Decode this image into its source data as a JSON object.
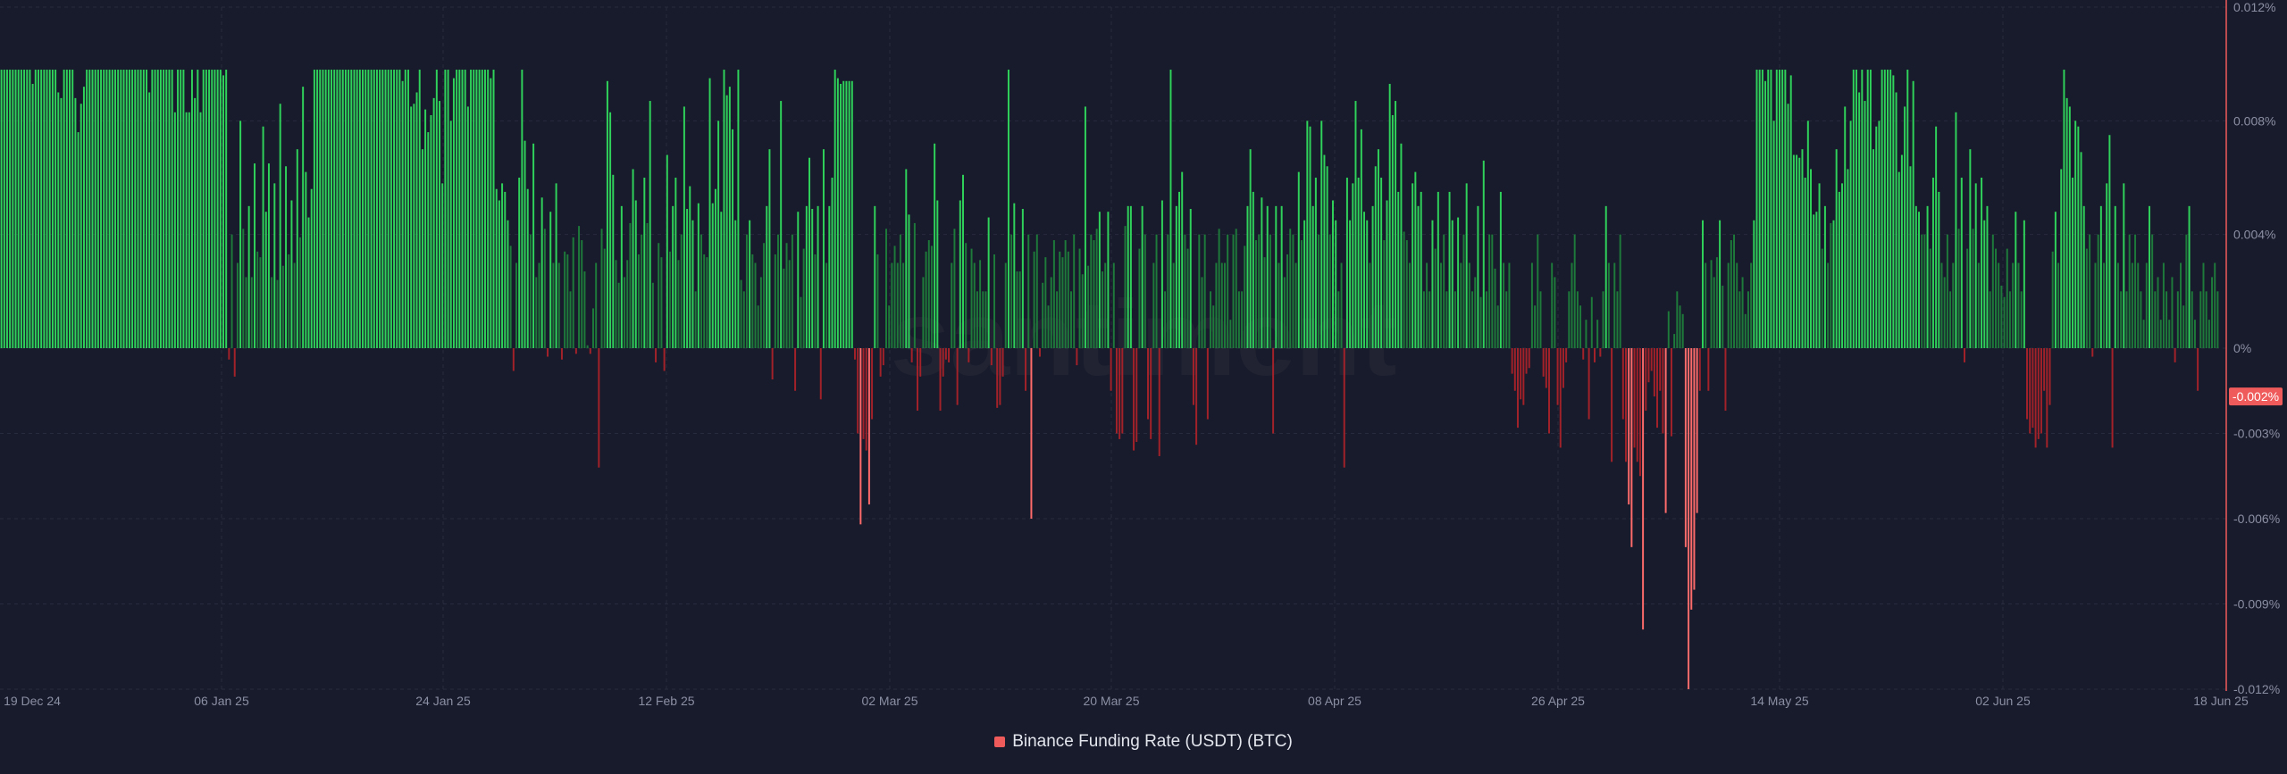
{
  "watermark": "santiment",
  "colors": {
    "background": "#181b2b",
    "positive_strong": "#2fd25a",
    "positive_weak": "#1d7a3a",
    "negative_strong": "#ff6b6b",
    "negative_weak": "#a3222a",
    "grid": "#272b3e",
    "axis_line": "#ef5b5b",
    "current_badge": "#ef5b5b",
    "legend_swatch": "#ef5b5b"
  },
  "chart_data": {
    "type": "bar",
    "x_tick_labels": [
      "19 Dec 24",
      "06 Jan 25",
      "24 Jan 25",
      "12 Feb 25",
      "02 Mar 25",
      "20 Mar 25",
      "08 Apr 25",
      "26 Apr 25",
      "14 May 25",
      "02 Jun 25",
      "18 Jun 25"
    ],
    "y_tick_labels": [
      "0.012%",
      "0.008%",
      "0.004%",
      "0%",
      "-0.003%",
      "-0.006%",
      "-0.009%",
      "-0.012%"
    ],
    "y_ticks": [
      0.012,
      0.008,
      0.004,
      0,
      -0.003,
      -0.006,
      -0.009,
      -0.012
    ],
    "ylim": [
      -0.012,
      0.012
    ],
    "current_value_label": "-0.002%",
    "current_value": -0.0017,
    "grid": true,
    "y_axis_position": "right",
    "legend_position": "bottom-center",
    "series": [
      {
        "name": "Binance Funding Rate (USDT) (BTC)",
        "values": [
          0.0098,
          0.0098,
          0.0098,
          0.0098,
          0.0098,
          0.0098,
          0.0098,
          0.0098,
          0.0098,
          0.0098,
          0.0098,
          0.0093,
          0.0098,
          0.0098,
          0.0098,
          0.0098,
          0.0098,
          0.0098,
          0.0098,
          0.0098,
          0.009,
          0.0088,
          0.0098,
          0.0098,
          0.0098,
          0.0098,
          0.0088,
          0.0076,
          0.0086,
          0.0092,
          0.0098,
          0.0098,
          0.0098,
          0.0098,
          0.0098,
          0.0098,
          0.0098,
          0.0098,
          0.0098,
          0.0098,
          0.0098,
          0.0098,
          0.0098,
          0.0098,
          0.0098,
          0.0098,
          0.0098,
          0.0098,
          0.0098,
          0.0098,
          0.0098,
          0.0098,
          0.009,
          0.0098,
          0.0098,
          0.0098,
          0.0098,
          0.0098,
          0.0098,
          0.0098,
          0.0098,
          0.0083,
          0.0098,
          0.0098,
          0.0098,
          0.0083,
          0.0083,
          0.0098,
          0.0088,
          0.0098,
          0.0083,
          0.0098,
          0.0098,
          0.0098,
          0.0098,
          0.0098,
          0.0098,
          0.0098,
          0.0096,
          0.0098,
          -0.0004,
          0.004,
          -0.001,
          0.003,
          0.008,
          0.0042,
          0.0025,
          0.005,
          0.0025,
          0.0065,
          0.0034,
          0.0032,
          0.0078,
          0.0048,
          0.0065,
          0.0025,
          0.0058,
          0.0024,
          0.0086,
          0.0029,
          0.0064,
          0.0033,
          0.0052,
          0.003,
          0.007,
          0.0039,
          0.0092,
          0.0062,
          0.0046,
          0.0056,
          0.0098,
          0.0098,
          0.0098,
          0.0098,
          0.0098,
          0.0098,
          0.0098,
          0.0098,
          0.0098,
          0.0098,
          0.0098,
          0.0098,
          0.0098,
          0.0098,
          0.0098,
          0.0098,
          0.0098,
          0.0098,
          0.0098,
          0.0098,
          0.0098,
          0.0098,
          0.0098,
          0.0098,
          0.0098,
          0.0098,
          0.0098,
          0.0098,
          0.0098,
          0.0098,
          0.0098,
          0.0094,
          0.0098,
          0.0098,
          0.0085,
          0.0086,
          0.009,
          0.0098,
          0.007,
          0.0084,
          0.0076,
          0.0082,
          0.0088,
          0.0098,
          0.0087,
          0.0058,
          0.0098,
          0.0098,
          0.008,
          0.0095,
          0.0098,
          0.0098,
          0.0098,
          0.0098,
          0.0085,
          0.0098,
          0.0098,
          0.0098,
          0.0098,
          0.0098,
          0.0098,
          0.0098,
          0.0095,
          0.0098,
          0.0056,
          0.0052,
          0.0058,
          0.0055,
          0.0045,
          0.0036,
          -0.0008,
          0.003,
          0.006,
          0.0098,
          0.0073,
          0.0056,
          0.004,
          0.0072,
          0.0025,
          0.003,
          0.0053,
          0.0042,
          -0.0003,
          0.0048,
          0.003,
          0.0058,
          0.003,
          -0.0004,
          0.0034,
          0.0033,
          0.002,
          0.0039,
          -0.0002,
          0.0043,
          0.0038,
          0.0027,
          0.0001,
          -0.0002,
          0.0014,
          0.003,
          -0.0042,
          0.0042,
          0.0035,
          0.0094,
          0.0083,
          0.0061,
          0.0031,
          0.0023,
          0.005,
          0.0025,
          0.0031,
          0.0044,
          0.0063,
          0.0052,
          0.0033,
          0.004,
          0.006,
          0.0044,
          0.0087,
          0.0023,
          -0.0005,
          0.0037,
          0.0032,
          -0.0008,
          0.0068,
          0.0034,
          0.005,
          0.006,
          0.0031,
          0.004,
          0.0085,
          0.0049,
          0.0057,
          0.0045,
          0.002,
          0.0051,
          0.004,
          0.0033,
          0.0032,
          0.0095,
          0.0051,
          0.0056,
          0.008,
          0.0048,
          0.0098,
          0.0089,
          0.0092,
          0.0077,
          0.0045,
          0.0098,
          0.0024,
          0.002,
          0.004,
          0.0045,
          0.0033,
          0.003,
          0.0015,
          0.0025,
          0.0037,
          0.005,
          0.007,
          -0.0011,
          0.0033,
          0.004,
          0.0087,
          0.0028,
          0.0037,
          0.0031,
          0.004,
          -0.0015,
          0.0048,
          0.0018,
          0.0035,
          0.005,
          0.0067,
          0.0049,
          0.0033,
          0.005,
          -0.0018,
          0.007,
          0.003,
          0.005,
          0.006,
          0.0098,
          0.0095,
          0.0093,
          0.0094,
          0.0094,
          0.0094,
          0.0094,
          -0.0004,
          -0.003,
          -0.0062,
          -0.0032,
          -0.0036,
          -0.0055,
          -0.0025,
          0.005,
          0.0033,
          -0.001,
          -0.0006,
          0.0042,
          0.0015,
          0.003,
          0.0036,
          0.003,
          0.004,
          0.003,
          0.0063,
          0.0047,
          -0.0005,
          0.0044,
          -0.0022,
          -0.001,
          0.0025,
          0.0034,
          0.0038,
          0.0036,
          0.0072,
          0.0052,
          -0.0022,
          -0.001,
          -0.0004,
          -0.0005,
          0.003,
          0.0042,
          -0.002,
          0.0052,
          0.0061,
          0.0037,
          -0.0005,
          0.0035,
          0.003,
          0.002,
          0.0031,
          0.002,
          0.002,
          0.0046,
          -0.0006,
          0.0033,
          -0.0021,
          -0.002,
          -0.001,
          0.003,
          0.0098,
          0.004,
          0.0051,
          0.0027,
          0.0027,
          0.0049,
          -0.0015,
          0.004,
          -0.006,
          0.0034,
          0.004,
          -0.0003,
          0.0023,
          0.0032,
          0.0015,
          0.0025,
          0.0038,
          0.002,
          0.0034,
          0.0032,
          0.0038,
          0.0034,
          0.002,
          0.004,
          -0.0006,
          0.0035,
          0.0026,
          0.0085,
          0.0029,
          0.004,
          0.0038,
          0.0042,
          0.0048,
          0.0027,
          0.003,
          0.0048,
          -0.0015,
          0.003,
          -0.003,
          -0.0032,
          -0.003,
          0.0043,
          0.005,
          0.005,
          -0.0036,
          -0.0033,
          0.0035,
          0.005,
          0.004,
          -0.0025,
          -0.0032,
          0.003,
          0.004,
          -0.0038,
          0.0052,
          0.002,
          0.004,
          0.0098,
          0.003,
          0.005,
          0.0055,
          0.0062,
          0.004,
          0.0035,
          0.0049,
          -0.002,
          -0.0034,
          0.004,
          0.0025,
          0.004,
          -0.0025,
          0.002,
          0.0015,
          0.003,
          0.0042,
          0.003,
          0.003,
          0.004,
          0.001,
          0.004,
          0.0042,
          0.002,
          0.002,
          0.0036,
          0.005,
          0.007,
          0.0055,
          0.0038,
          0.004,
          0.0053,
          0.0032,
          0.005,
          0.004,
          -0.003,
          0.005,
          0.003,
          0.005,
          0.0025,
          0.0033,
          0.0042,
          0.004,
          0.003,
          0.0062,
          0.0038,
          0.0045,
          0.008,
          0.0078,
          0.005,
          0.006,
          0.004,
          0.008,
          0.0068,
          0.0064,
          0.004,
          0.0052,
          0.0045,
          0.002,
          0.003,
          -0.0042,
          0.006,
          0.0045,
          0.0058,
          0.0087,
          0.006,
          0.0077,
          0.0048,
          0.0045,
          0.003,
          0.005,
          0.0064,
          0.007,
          0.006,
          0.0038,
          0.0052,
          0.0093,
          0.0082,
          0.0087,
          0.0055,
          0.0072,
          0.0041,
          0.0038,
          0.003,
          0.0058,
          0.0062,
          0.005,
          0.0055,
          0.002,
          0.003,
          0.002,
          0.0045,
          0.0035,
          0.0055,
          0.003,
          0.004,
          0.002,
          0.0055,
          0.0045,
          0.002,
          0.0046,
          0.003,
          0.004,
          0.0058,
          0.003,
          0.002,
          0.0025,
          0.005,
          0.0018,
          0.0066,
          0.002,
          0.004,
          0.004,
          0.0028,
          0.0015,
          0.0055,
          0.003,
          0.002,
          0.003,
          -0.0009,
          -0.0015,
          -0.0028,
          -0.0018,
          -0.002,
          -0.0009,
          -0.0007,
          0.003,
          0.0015,
          0.004,
          0.002,
          -0.001,
          -0.0014,
          -0.003,
          0.003,
          0.0025,
          -0.002,
          -0.0035,
          -0.0014,
          -0.0005,
          0.002,
          0.003,
          0.004,
          0.002,
          0.0015,
          -0.0004,
          0.001,
          -0.0025,
          0.0018,
          -0.0005,
          0.001,
          -0.0003,
          0.002,
          0.005,
          0.003,
          -0.004,
          0.003,
          0.002,
          0.004,
          -0.0025,
          -0.004,
          -0.0055,
          -0.007,
          -0.0035,
          -0.004,
          -0.0045,
          -0.0099,
          -0.0022,
          -0.0012,
          -0.0008,
          -0.0017,
          -0.0028,
          -0.0015,
          -0.003,
          -0.0058,
          0.0013,
          -0.0031,
          0.0005,
          0.002,
          0.0015,
          0.0012,
          -0.007,
          -0.012,
          -0.0092,
          -0.0085,
          -0.0058,
          -0.0015,
          0.0045,
          0.003,
          -0.0015,
          0.0031,
          0.0025,
          0.0032,
          0.0045,
          0.0022,
          -0.0022,
          0.003,
          0.0038,
          0.004,
          0.003,
          0.002,
          0.0025,
          0.0012,
          0.002,
          0.003,
          0.0045,
          0.0098,
          0.0098,
          0.0098,
          0.0094,
          0.0098,
          0.0098,
          0.008,
          0.0098,
          0.0098,
          0.0098,
          0.0098,
          0.0086,
          0.0096,
          0.0068,
          0.0068,
          0.0067,
          0.007,
          0.006,
          0.008,
          0.0063,
          0.0047,
          0.0048,
          0.0058,
          0.0035,
          0.005,
          0.003,
          0.0044,
          0.0045,
          0.007,
          0.0055,
          0.0058,
          0.0085,
          0.0063,
          0.008,
          0.0098,
          0.0098,
          0.009,
          0.0098,
          0.0087,
          0.0098,
          0.0098,
          0.007,
          0.0078,
          0.008,
          0.0098,
          0.0098,
          0.0098,
          0.0098,
          0.0096,
          0.009,
          0.0062,
          0.0068,
          0.0085,
          0.0098,
          0.0064,
          0.0094,
          0.005,
          0.0048,
          0.004,
          0.004,
          0.005,
          0.0035,
          0.006,
          0.0078,
          0.0055,
          0.003,
          0.0025,
          0.004,
          0.002,
          0.003,
          0.0083,
          0.0042,
          0.006,
          -0.0005,
          0.0035,
          0.007,
          0.0042,
          0.0058,
          0.003,
          0.006,
          0.0045,
          0.005,
          0.002,
          0.004,
          0.0035,
          0.003,
          0.0022,
          0.0018,
          0.0035,
          0.002,
          0.003,
          0.0048,
          0.003,
          0.002,
          0.0045,
          -0.0025,
          -0.003,
          -0.0028,
          -0.0035,
          -0.0032,
          -0.003,
          -0.0015,
          -0.0035,
          -0.002,
          0.0034,
          0.0048,
          0.003,
          0.0063,
          0.0098,
          0.0088,
          0.0085,
          0.006,
          0.008,
          0.0078,
          0.0069,
          0.005,
          0.0035,
          0.004,
          -0.0003,
          0.003,
          0.004,
          0.005,
          0.003,
          0.0058,
          0.0075,
          -0.0035,
          0.005,
          0.003,
          0.002,
          0.0058,
          0.002,
          0.004,
          0.003,
          0.004,
          0.003,
          0.002,
          0.001,
          0.003,
          0.005,
          0.004,
          0.002,
          0.0025,
          0.001,
          0.003,
          0.002,
          0.001,
          0.0025,
          -0.0005,
          0.002,
          0.003,
          0.0015,
          0.004,
          0.005,
          0.002,
          0.001,
          -0.0015,
          0.002,
          0.003,
          0.002,
          0.001,
          0.0025,
          0.003,
          0.002
        ]
      }
    ]
  }
}
